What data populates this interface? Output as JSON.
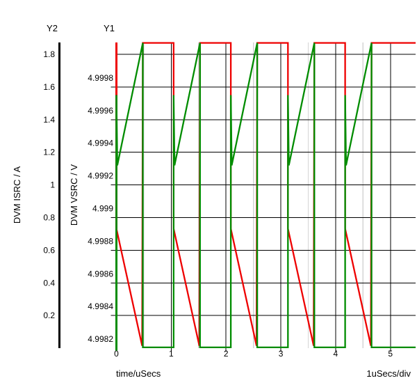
{
  "window": {
    "background": "#ffffff"
  },
  "chart_data": {
    "type": "line",
    "title": "",
    "description": "Switching power supply transient waveforms: output voltage rising sawtooth (green, Y1) and inductor/source current falling sawtooth with high flat phase (red, Y2)",
    "x_axis": {
      "label": "time/uSecs",
      "div_label": "1uSecs/div",
      "ticks": [
        "0",
        "1",
        "2",
        "3",
        "4",
        "5"
      ],
      "minor_divisions_us": [
        0.5,
        1.5,
        2.5,
        3.5,
        4.5
      ],
      "range_us": [
        0,
        5.46
      ]
    },
    "y1_axis": {
      "name": "Y1",
      "label": "DVM VSRC / V",
      "ticks": [
        "4.9998",
        "4.9996",
        "4.9994",
        "4.9992",
        "4.999",
        "4.9988",
        "4.9986",
        "4.9984",
        "4.9982"
      ],
      "unlabeled_top_value": 5.0
    },
    "y2_axis": {
      "name": "Y2",
      "label": "DVM ISRC / A",
      "ticks": [
        "1.8",
        "1.6",
        "1.4",
        "1.2",
        "1",
        "0.8",
        "0.6",
        "0.4",
        "0.2"
      ],
      "unlabeled_bottom_value": 0.0
    },
    "cycles": {
      "start_times_us": [
        0,
        1.0435,
        2.087,
        3.1305,
        4.174
      ],
      "ramp_duration_us": 0.482,
      "period_us": 1.0435,
      "end_time_us": 5.46
    },
    "series": [
      {
        "name": "DVM ISRC",
        "axis": "Y2",
        "color": "#ee0000",
        "shape": "falling-sawtooth-with-flat-high",
        "levels": {
          "flat_high": 1.87,
          "ramp_start": 0.732,
          "ramp_end": 0.015
        }
      },
      {
        "name": "DVM VSRC",
        "axis": "Y1",
        "color": "#008c00",
        "shape": "rising-sawtooth-with-flat-low",
        "levels": {
          "flat_low": 4.998205,
          "overshoot_spike": 4.99975,
          "dip_after_spike": 4.99932,
          "ramp_start": 4.99937,
          "ramp_peak": 5.00007
        }
      }
    ],
    "grid": {
      "on": true,
      "major_color": "#000000",
      "minor_color": "#d4d4d4"
    }
  }
}
